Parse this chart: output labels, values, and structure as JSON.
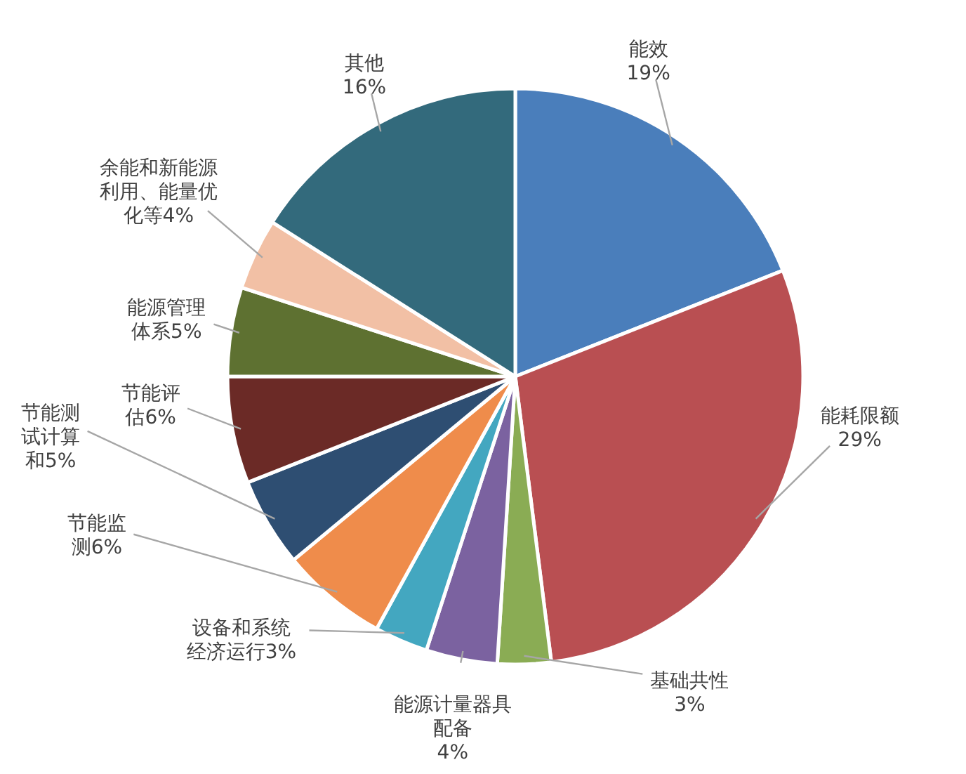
{
  "chart_data": {
    "type": "pie",
    "categories": [
      "能效",
      "能耗限额",
      "基础共性",
      "能源计量器具配备",
      "设备和系统经济运行",
      "节能监测",
      "节能测试计算和",
      "节能评估",
      "能源管理体系",
      "余能和新能源利用、能量优化等",
      "其他"
    ],
    "values": [
      19,
      29,
      3,
      4,
      3,
      6,
      5,
      6,
      5,
      4,
      16
    ],
    "value_labels": [
      "19%",
      "29%",
      "3%",
      "4%",
      "3%",
      "6%",
      "5%",
      "6%",
      "5%",
      "4%",
      "16%"
    ],
    "colors": [
      "#4a7ebb",
      "#b94f52",
      "#8aac54",
      "#7b62a0",
      "#43a7c0",
      "#ef8c4b",
      "#2e4e72",
      "#6b2a26",
      "#5e7131",
      "#f2c0a5",
      "#336a7c"
    ]
  }
}
